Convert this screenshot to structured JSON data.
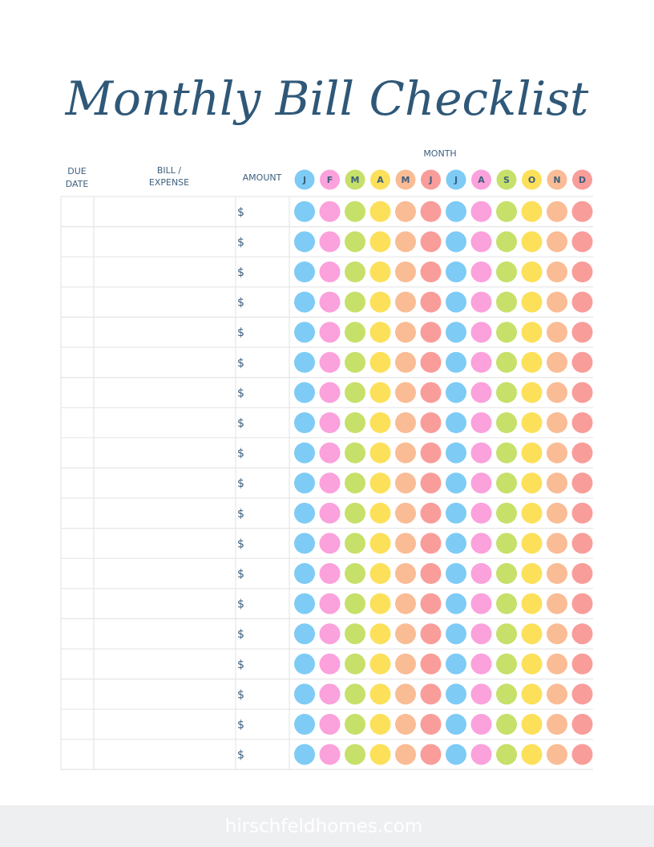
{
  "header": {
    "title": "Monthly Bill Checklist"
  },
  "table": {
    "month_label": "MONTH",
    "columns": {
      "due_date": [
        "DUE",
        "DATE"
      ],
      "bill": [
        "BILL /",
        "EXPENSE"
      ],
      "amount": "AMOUNT"
    },
    "months": [
      {
        "letter": "J",
        "color": "#7ecbf5"
      },
      {
        "letter": "F",
        "color": "#fba1dc"
      },
      {
        "letter": "M",
        "color": "#c6e06a"
      },
      {
        "letter": "A",
        "color": "#fde05a"
      },
      {
        "letter": "M",
        "color": "#f9bc94"
      },
      {
        "letter": "J",
        "color": "#f99d9a"
      },
      {
        "letter": "J",
        "color": "#7ecbf5"
      },
      {
        "letter": "A",
        "color": "#fba1dc"
      },
      {
        "letter": "S",
        "color": "#c6e06a"
      },
      {
        "letter": "O",
        "color": "#fde05a"
      },
      {
        "letter": "N",
        "color": "#f9bc94"
      },
      {
        "letter": "D",
        "color": "#f99d9a"
      }
    ],
    "rows": [
      "$",
      "$",
      "$",
      "$",
      "$",
      "$",
      "$",
      "$",
      "$",
      "$",
      "$",
      "$",
      "$",
      "$",
      "$",
      "$",
      "$",
      "$",
      "$"
    ]
  },
  "footer": {
    "site": "hirschfeldhomes.com"
  }
}
